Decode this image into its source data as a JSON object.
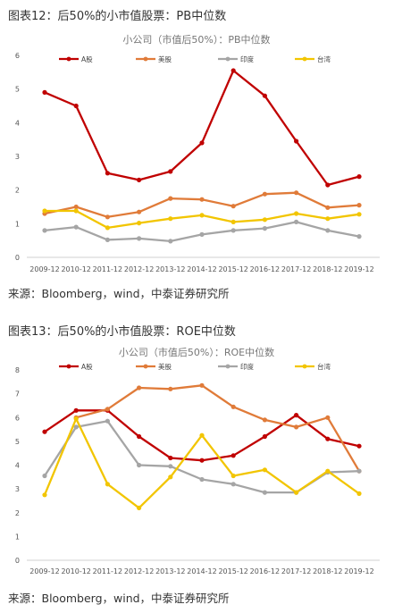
{
  "figure1": {
    "title": "图表12：后50%的小市值股票：PB中位数",
    "source": "来源：Bloomberg，wind，中泰证券研究所"
  },
  "figure2": {
    "title": "图表13：后50%的小市值股票：ROE中位数",
    "source": "来源：Bloomberg，wind，中泰证券研究所"
  },
  "colors": {
    "A股": "#c00000",
    "美股": "#e07b39",
    "印度": "#a5a5a5",
    "台湾": "#f2c500"
  },
  "chart_data": [
    {
      "type": "line",
      "title": "小公司（市值后50%）：PB中位数",
      "categories": [
        "2009-12",
        "2010-12",
        "2011-12",
        "2012-12",
        "2013-12",
        "2014-12",
        "2015-12",
        "2016-12",
        "2017-12",
        "2018-12",
        "2019-12"
      ],
      "ylim": [
        0,
        6
      ],
      "yticks": [
        0,
        1,
        2,
        3,
        4,
        5,
        6
      ],
      "grid": false,
      "legend": "top",
      "series": [
        {
          "name": "A股",
          "color": "#c00000",
          "values": [
            4.9,
            4.5,
            2.5,
            2.3,
            2.55,
            3.4,
            5.55,
            4.8,
            3.45,
            2.15,
            2.4
          ]
        },
        {
          "name": "美股",
          "color": "#e07b39",
          "values": [
            1.3,
            1.5,
            1.2,
            1.35,
            1.75,
            1.72,
            1.52,
            1.88,
            1.92,
            1.48,
            1.55
          ]
        },
        {
          "name": "印度",
          "color": "#a5a5a5",
          "values": [
            0.8,
            0.9,
            0.52,
            0.56,
            0.48,
            0.68,
            0.8,
            0.86,
            1.05,
            0.8,
            0.62
          ]
        },
        {
          "name": "台湾",
          "color": "#f2c500",
          "values": [
            1.38,
            1.38,
            0.88,
            1.02,
            1.15,
            1.25,
            1.05,
            1.12,
            1.3,
            1.15,
            1.28
          ]
        }
      ]
    },
    {
      "type": "line",
      "title": "小公司（市值后50%）：ROE中位数",
      "categories": [
        "2009-12",
        "2010-12",
        "2011-12",
        "2012-12",
        "2013-12",
        "2014-12",
        "2015-12",
        "2016-12",
        "2017-12",
        "2018-12",
        "2019-12"
      ],
      "ylim": [
        0,
        8
      ],
      "yticks": [
        0,
        1,
        2,
        3,
        4,
        5,
        6,
        7,
        8
      ],
      "grid": false,
      "legend": "top",
      "series": [
        {
          "name": "A股",
          "color": "#c00000",
          "values": [
            5.4,
            6.3,
            6.3,
            5.2,
            4.3,
            4.2,
            4.4,
            5.2,
            6.1,
            5.1,
            4.8
          ]
        },
        {
          "name": "美股",
          "color": "#e07b39",
          "values": [
            null,
            6.0,
            6.35,
            7.25,
            7.2,
            7.35,
            6.45,
            5.9,
            5.6,
            6.0,
            3.75
          ]
        },
        {
          "name": "印度",
          "color": "#a5a5a5",
          "values": [
            3.55,
            5.6,
            5.85,
            4.0,
            3.95,
            3.4,
            3.2,
            2.85,
            2.85,
            3.7,
            3.75
          ]
        },
        {
          "name": "台湾",
          "color": "#f2c500",
          "values": [
            2.75,
            5.95,
            3.2,
            2.2,
            3.5,
            5.25,
            3.55,
            3.8,
            2.85,
            3.75,
            2.8
          ]
        }
      ]
    }
  ]
}
